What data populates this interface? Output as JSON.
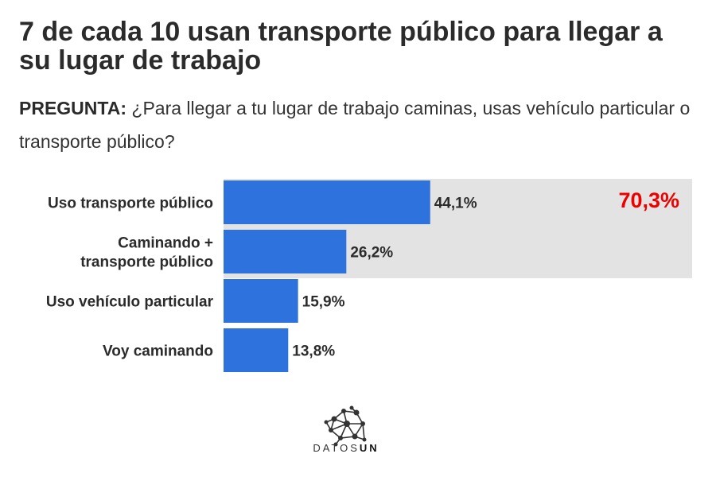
{
  "title": "7 de cada 10 usan transporte público para llegar a su lugar de trabajo",
  "question": {
    "prefix": "PREGUNTA:",
    "text": " ¿Para llegar a tu lugar de trabajo caminas, usas vehículo particular o transporte público?"
  },
  "chart_data": {
    "type": "bar",
    "orientation": "horizontal",
    "categories": [
      [
        "Uso transporte público"
      ],
      [
        "Caminando +",
        "transporte público"
      ],
      [
        "Uso vehículo particular"
      ],
      [
        "Voy caminando"
      ]
    ],
    "values": [
      44.1,
      26.2,
      15.9,
      13.8
    ],
    "value_labels": [
      "44,1%",
      "26,2%",
      "15,9%",
      "13,8%"
    ],
    "xlim": [
      0,
      100
    ],
    "bar_color": "#2e72de",
    "highlight": {
      "categories_covered": [
        0,
        1
      ],
      "label": "70,3%",
      "value": 70.3,
      "background": "#e3e3e3",
      "label_color": "#ee0000"
    }
  },
  "logo": {
    "name": "network-logo-icon",
    "text_light": "DATOS",
    "text_bold": "UN"
  }
}
